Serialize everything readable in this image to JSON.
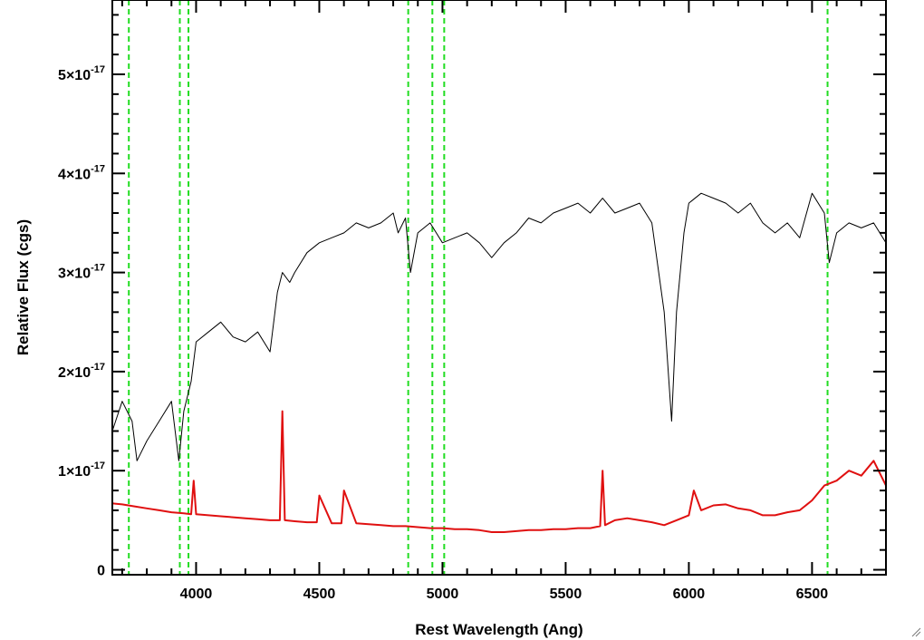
{
  "chart_data": {
    "type": "line",
    "title": "",
    "xlabel": "Rest Wavelength (Ang)",
    "ylabel": "Relative Flux (cgs)",
    "xlim": [
      3660,
      6800
    ],
    "ylim": [
      -5e-19,
      5.75e-17
    ],
    "x_ticks": [
      4000,
      4500,
      5000,
      5500,
      6000,
      6500
    ],
    "y_ticks": [
      {
        "value": 0,
        "mantissa": "0",
        "exponent": ""
      },
      {
        "value": 1e-17,
        "mantissa": "1×10",
        "exponent": "-17"
      },
      {
        "value": 2e-17,
        "mantissa": "2×10",
        "exponent": "-17"
      },
      {
        "value": 3e-17,
        "mantissa": "3×10",
        "exponent": "-17"
      },
      {
        "value": 4e-17,
        "mantissa": "4×10",
        "exponent": "-17"
      },
      {
        "value": 5e-17,
        "mantissa": "5×10",
        "exponent": "-17"
      }
    ],
    "grid": false,
    "series": [
      {
        "color": "#000000",
        "style": "solid",
        "x": [
          3660,
          3700,
          3740,
          3760,
          3800,
          3850,
          3900,
          3930,
          3950,
          3980,
          4000,
          4050,
          4100,
          4150,
          4200,
          4250,
          4300,
          4330,
          4350,
          4380,
          4400,
          4450,
          4500,
          4550,
          4600,
          4650,
          4700,
          4750,
          4800,
          4820,
          4850,
          4870,
          4900,
          4950,
          5000,
          5050,
          5100,
          5150,
          5200,
          5250,
          5300,
          5350,
          5400,
          5450,
          5500,
          5550,
          5600,
          5650,
          5700,
          5750,
          5800,
          5850,
          5900,
          5930,
          5950,
          5980,
          6000,
          6050,
          6100,
          6150,
          6200,
          6250,
          6300,
          6350,
          6400,
          6450,
          6500,
          6550,
          6570,
          6600,
          6650,
          6700,
          6750,
          6800
        ],
        "y": [
          1.4e-17,
          1.7e-17,
          1.5e-17,
          1.1e-17,
          1.3e-17,
          1.5e-17,
          1.7e-17,
          1.1e-17,
          1.6e-17,
          1.9e-17,
          2.3e-17,
          2.4e-17,
          2.5e-17,
          2.35e-17,
          2.3e-17,
          2.4e-17,
          2.2e-17,
          2.8e-17,
          3e-17,
          2.9e-17,
          3e-17,
          3.2e-17,
          3.3e-17,
          3.35e-17,
          3.4e-17,
          3.5e-17,
          3.45e-17,
          3.5e-17,
          3.6e-17,
          3.4e-17,
          3.55e-17,
          3e-17,
          3.4e-17,
          3.5e-17,
          3.3e-17,
          3.35e-17,
          3.4e-17,
          3.3e-17,
          3.15e-17,
          3.3e-17,
          3.4e-17,
          3.55e-17,
          3.5e-17,
          3.6e-17,
          3.65e-17,
          3.7e-17,
          3.6e-17,
          3.75e-17,
          3.6e-17,
          3.65e-17,
          3.7e-17,
          3.5e-17,
          2.6e-17,
          1.5e-17,
          2.6e-17,
          3.4e-17,
          3.7e-17,
          3.8e-17,
          3.75e-17,
          3.7e-17,
          3.6e-17,
          3.7e-17,
          3.5e-17,
          3.4e-17,
          3.5e-17,
          3.35e-17,
          3.8e-17,
          3.6e-17,
          3.1e-17,
          3.4e-17,
          3.5e-17,
          3.45e-17,
          3.5e-17,
          3.3e-17
        ]
      },
      {
        "color": "#e01010",
        "style": "solid",
        "x": [
          3660,
          3700,
          3750,
          3800,
          3850,
          3900,
          3950,
          3980,
          3990,
          4000,
          4050,
          4100,
          4150,
          4200,
          4250,
          4300,
          4340,
          4350,
          4360,
          4400,
          4450,
          4490,
          4500,
          4550,
          4590,
          4600,
          4650,
          4700,
          4750,
          4800,
          4820,
          4850,
          4900,
          4950,
          5000,
          5050,
          5100,
          5150,
          5200,
          5250,
          5300,
          5350,
          5400,
          5450,
          5500,
          5550,
          5600,
          5640,
          5650,
          5660,
          5700,
          5750,
          5800,
          5850,
          5900,
          5950,
          6000,
          6020,
          6050,
          6100,
          6150,
          6200,
          6250,
          6300,
          6350,
          6400,
          6450,
          6500,
          6550,
          6600,
          6650,
          6700,
          6750,
          6800
        ],
        "y": [
          6.7e-18,
          6.6e-18,
          6.4e-18,
          6.2e-18,
          6e-18,
          5.8e-18,
          5.7e-18,
          5.6e-18,
          9e-18,
          5.6e-18,
          5.5e-18,
          5.4e-18,
          5.3e-18,
          5.2e-18,
          5.1e-18,
          5e-18,
          5e-18,
          1.6e-17,
          5e-18,
          4.9e-18,
          4.8e-18,
          4.8e-18,
          7.5e-18,
          4.7e-18,
          4.7e-18,
          8e-18,
          4.7e-18,
          4.6e-18,
          4.5e-18,
          4.4e-18,
          4.4e-18,
          4.4e-18,
          4.3e-18,
          4.2e-18,
          4.2e-18,
          4.1e-18,
          4.1e-18,
          4e-18,
          3.8e-18,
          3.8e-18,
          3.9e-18,
          4e-18,
          4e-18,
          4.1e-18,
          4.1e-18,
          4.2e-18,
          4.2e-18,
          4.4e-18,
          1e-17,
          4.5e-18,
          5e-18,
          5.2e-18,
          5e-18,
          4.8e-18,
          4.5e-18,
          5e-18,
          5.5e-18,
          8e-18,
          6e-18,
          6.5e-18,
          6.6e-18,
          6.2e-18,
          6e-18,
          5.5e-18,
          5.5e-18,
          5.8e-18,
          6e-18,
          7e-18,
          8.5e-18,
          9e-18,
          1e-17,
          9.5e-18,
          1.1e-17,
          8.5e-18
        ]
      }
    ],
    "vertical_lines": [
      {
        "x": 3727,
        "color": "#22dd22",
        "style": "dashed"
      },
      {
        "x": 3934,
        "color": "#22dd22",
        "style": "dashed"
      },
      {
        "x": 3969,
        "color": "#22dd22",
        "style": "dashed"
      },
      {
        "x": 4861,
        "color": "#22dd22",
        "style": "dashed"
      },
      {
        "x": 4959,
        "color": "#22dd22",
        "style": "dashed"
      },
      {
        "x": 5007,
        "color": "#22dd22",
        "style": "dashed"
      },
      {
        "x": 6563,
        "color": "#22dd22",
        "style": "dashed"
      }
    ]
  }
}
